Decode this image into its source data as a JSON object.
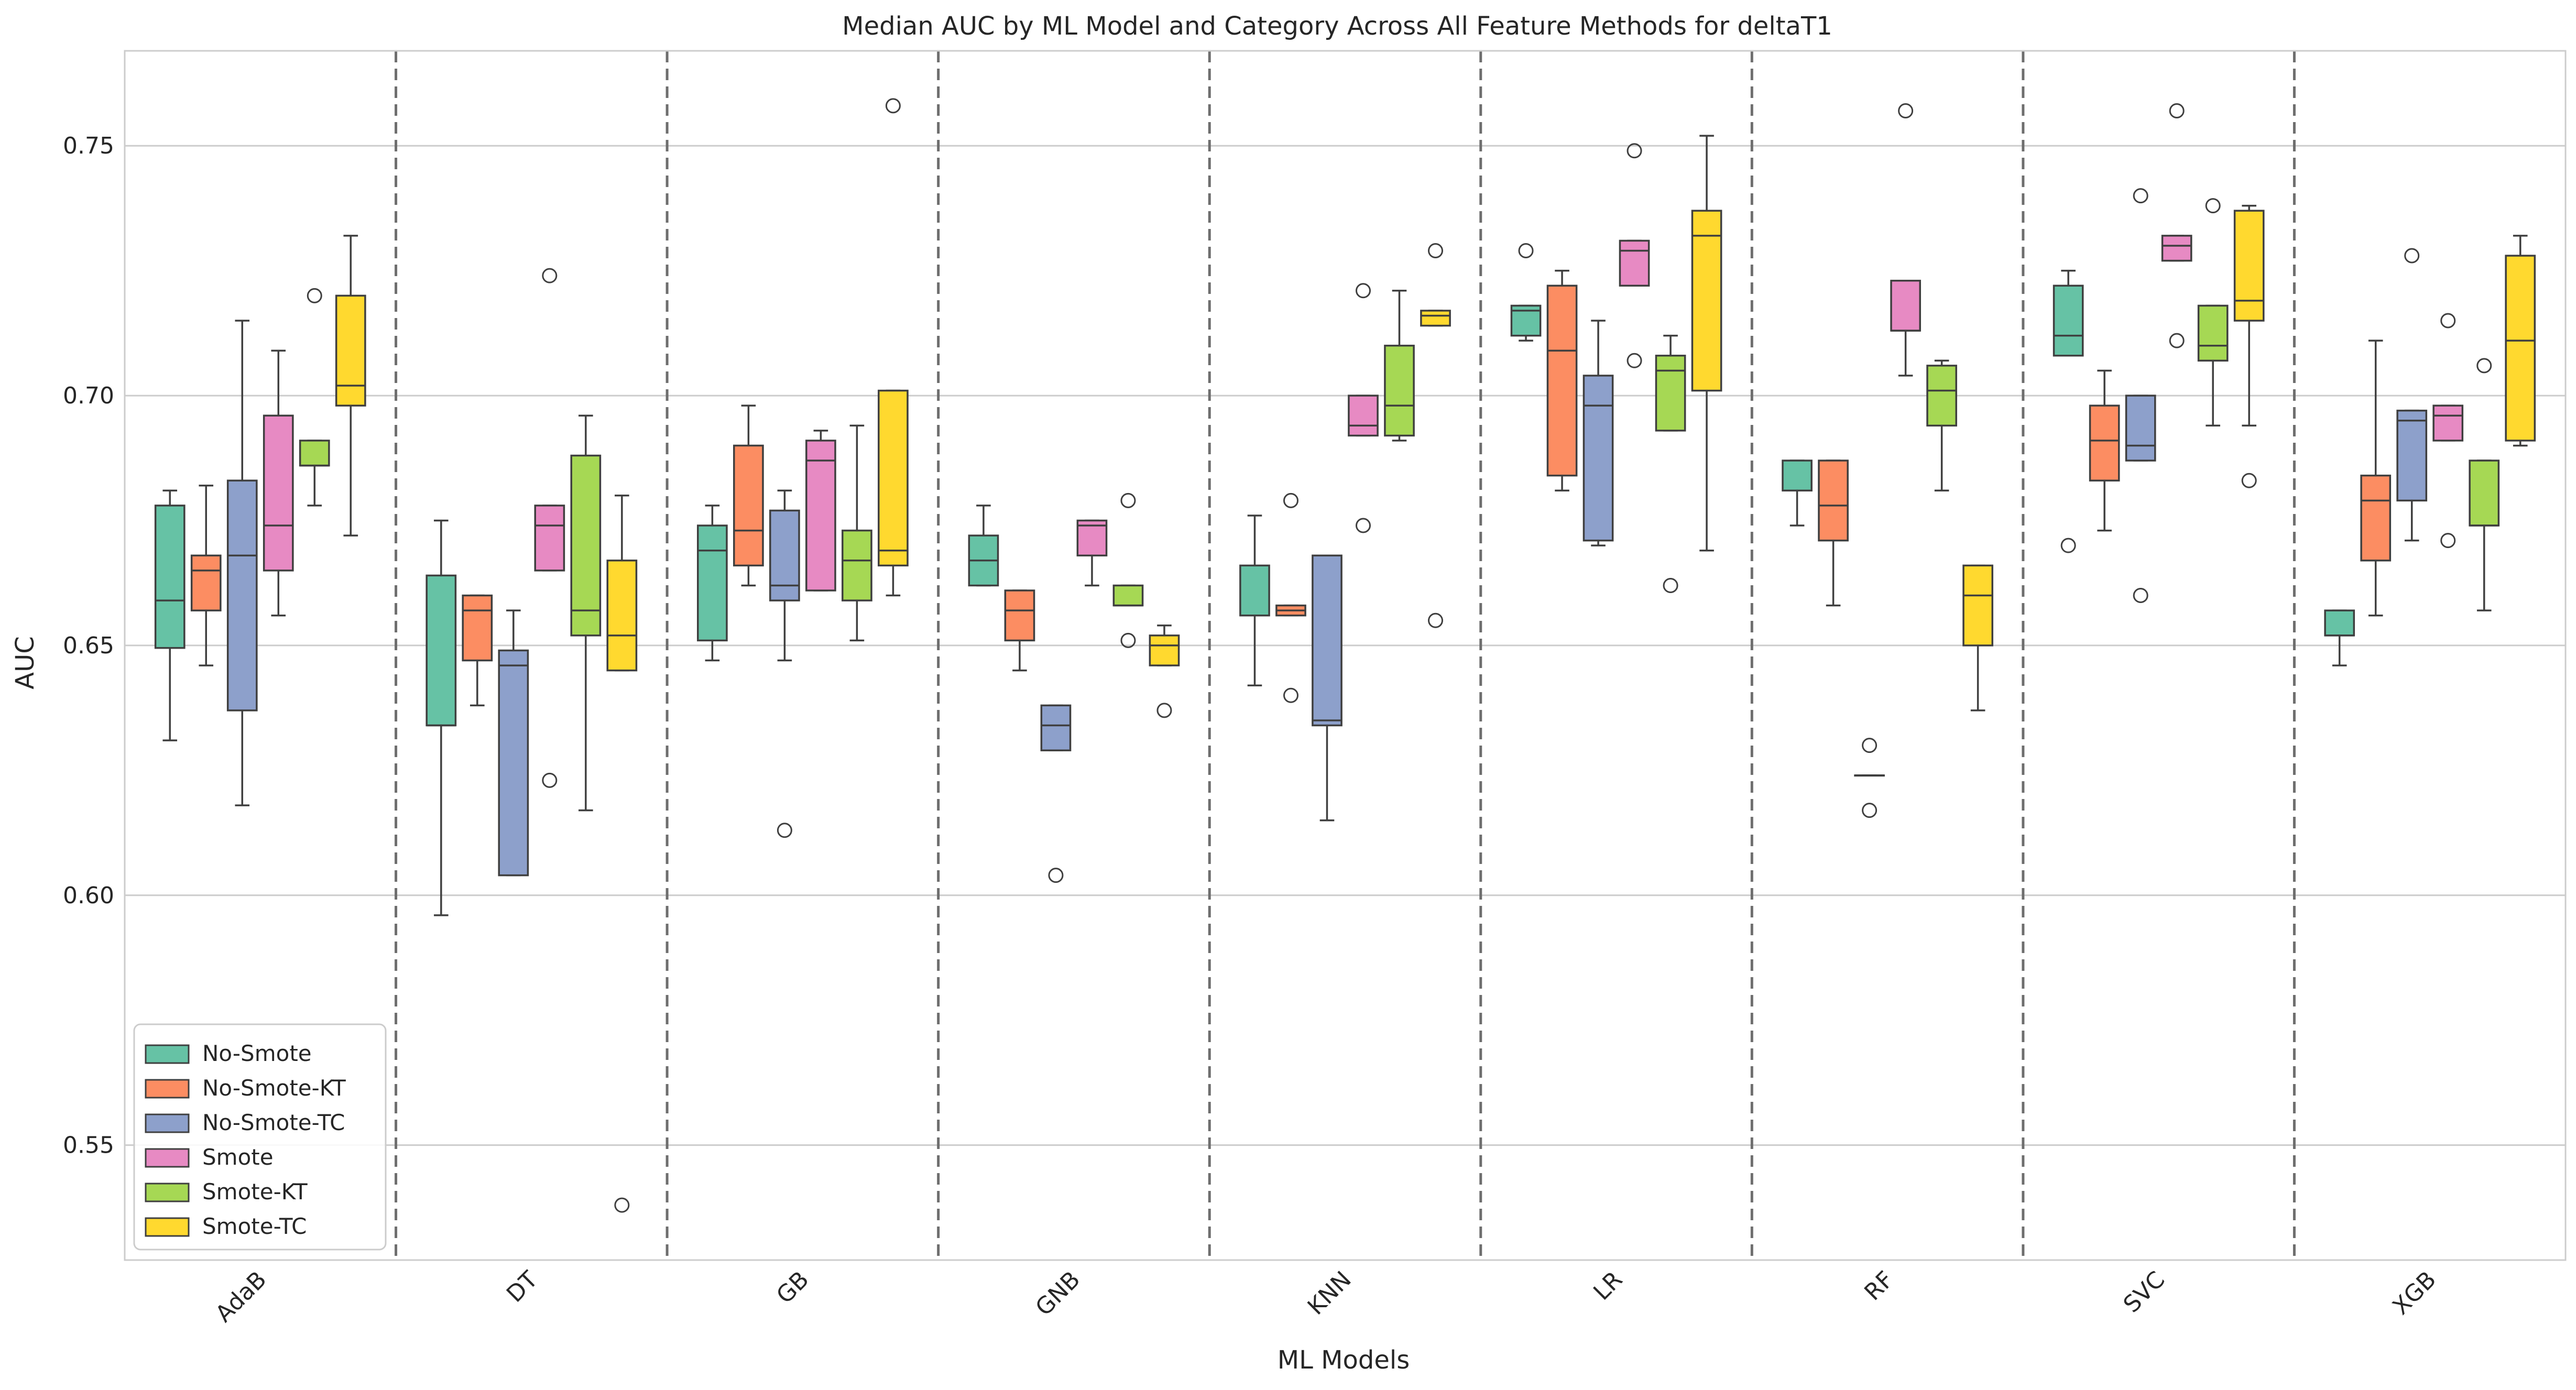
{
  "chart_data": {
    "type": "box",
    "title": "Median AUC by ML Model and Category Across All Feature Methods for deltaT1",
    "xlabel": "ML Models",
    "ylabel": "AUC",
    "ylim": [
      0.527,
      0.769
    ],
    "yticks": [
      0.55,
      0.6,
      0.65,
      0.7,
      0.75
    ],
    "ytick_labels": [
      "0.55",
      "0.60",
      "0.65",
      "0.70",
      "0.75"
    ],
    "grid": true,
    "legend_position": "lower-left",
    "categories": [
      "AdaB",
      "DT",
      "GB",
      "GNB",
      "KNN",
      "LR",
      "RF",
      "SVC",
      "XGB"
    ],
    "series": [
      {
        "name": "No-Smote",
        "color": "#66c2a5",
        "boxes": [
          {
            "q1": 0.6495,
            "median": 0.659,
            "q3": 0.678,
            "whisker_low": 0.631,
            "whisker_high": 0.681,
            "outliers": []
          },
          {
            "q1": 0.634,
            "median": 0.634,
            "q3": 0.664,
            "whisker_low": 0.596,
            "whisker_high": 0.675,
            "outliers": []
          },
          {
            "q1": 0.651,
            "median": 0.669,
            "q3": 0.674,
            "whisker_low": 0.647,
            "whisker_high": 0.678,
            "outliers": []
          },
          {
            "q1": 0.662,
            "median": 0.667,
            "q3": 0.672,
            "whisker_low": 0.662,
            "whisker_high": 0.678,
            "outliers": []
          },
          {
            "q1": 0.656,
            "median": 0.656,
            "q3": 0.666,
            "whisker_low": 0.642,
            "whisker_high": 0.676,
            "outliers": []
          },
          {
            "q1": 0.712,
            "median": 0.717,
            "q3": 0.718,
            "whisker_low": 0.711,
            "whisker_high": 0.718,
            "outliers": [
              0.729
            ]
          },
          {
            "q1": 0.681,
            "median": 0.681,
            "q3": 0.687,
            "whisker_low": 0.674,
            "whisker_high": 0.687,
            "outliers": []
          },
          {
            "q1": 0.708,
            "median": 0.712,
            "q3": 0.722,
            "whisker_low": 0.708,
            "whisker_high": 0.725,
            "outliers": [
              0.67
            ]
          },
          {
            "q1": 0.652,
            "median": 0.652,
            "q3": 0.657,
            "whisker_low": 0.646,
            "whisker_high": 0.657,
            "outliers": []
          }
        ]
      },
      {
        "name": "No-Smote-KT",
        "color": "#fc8d62",
        "boxes": [
          {
            "q1": 0.657,
            "median": 0.665,
            "q3": 0.668,
            "whisker_low": 0.646,
            "whisker_high": 0.682,
            "outliers": []
          },
          {
            "q1": 0.647,
            "median": 0.657,
            "q3": 0.66,
            "whisker_low": 0.638,
            "whisker_high": 0.66,
            "outliers": []
          },
          {
            "q1": 0.666,
            "median": 0.673,
            "q3": 0.69,
            "whisker_low": 0.662,
            "whisker_high": 0.698,
            "outliers": []
          },
          {
            "q1": 0.651,
            "median": 0.657,
            "q3": 0.661,
            "whisker_low": 0.645,
            "whisker_high": 0.661,
            "outliers": []
          },
          {
            "q1": 0.656,
            "median": 0.657,
            "q3": 0.658,
            "whisker_low": 0.656,
            "whisker_high": 0.658,
            "outliers": [
              0.679,
              0.64
            ]
          },
          {
            "q1": 0.684,
            "median": 0.709,
            "q3": 0.722,
            "whisker_low": 0.681,
            "whisker_high": 0.725,
            "outliers": []
          },
          {
            "q1": 0.671,
            "median": 0.678,
            "q3": 0.687,
            "whisker_low": 0.658,
            "whisker_high": 0.687,
            "outliers": []
          },
          {
            "q1": 0.683,
            "median": 0.691,
            "q3": 0.698,
            "whisker_low": 0.673,
            "whisker_high": 0.705,
            "outliers": []
          },
          {
            "q1": 0.667,
            "median": 0.679,
            "q3": 0.684,
            "whisker_low": 0.656,
            "whisker_high": 0.711,
            "outliers": []
          }
        ]
      },
      {
        "name": "No-Smote-TC",
        "color": "#8da0cb",
        "boxes": [
          {
            "q1": 0.637,
            "median": 0.668,
            "q3": 0.683,
            "whisker_low": 0.618,
            "whisker_high": 0.715,
            "outliers": []
          },
          {
            "q1": 0.604,
            "median": 0.646,
            "q3": 0.649,
            "whisker_low": 0.604,
            "whisker_high": 0.657,
            "outliers": []
          },
          {
            "q1": 0.659,
            "median": 0.662,
            "q3": 0.677,
            "whisker_low": 0.647,
            "whisker_high": 0.681,
            "outliers": [
              0.613
            ]
          },
          {
            "q1": 0.629,
            "median": 0.634,
            "q3": 0.638,
            "whisker_low": 0.629,
            "whisker_high": 0.638,
            "outliers": [
              0.604
            ]
          },
          {
            "q1": 0.634,
            "median": 0.635,
            "q3": 0.668,
            "whisker_low": 0.615,
            "whisker_high": 0.668,
            "outliers": []
          },
          {
            "q1": 0.671,
            "median": 0.698,
            "q3": 0.704,
            "whisker_low": 0.67,
            "whisker_high": 0.715,
            "outliers": []
          },
          {
            "q1": 0.624,
            "median": 0.624,
            "q3": 0.624,
            "whisker_low": 0.624,
            "whisker_high": 0.624,
            "outliers": [
              0.63,
              0.617
            ]
          },
          {
            "q1": 0.687,
            "median": 0.69,
            "q3": 0.7,
            "whisker_low": 0.687,
            "whisker_high": 0.7,
            "outliers": [
              0.74,
              0.66
            ]
          },
          {
            "q1": 0.679,
            "median": 0.695,
            "q3": 0.697,
            "whisker_low": 0.671,
            "whisker_high": 0.697,
            "outliers": [
              0.728
            ]
          }
        ]
      },
      {
        "name": "Smote",
        "color": "#e78ac3",
        "boxes": [
          {
            "q1": 0.665,
            "median": 0.674,
            "q3": 0.696,
            "whisker_low": 0.656,
            "whisker_high": 0.709,
            "outliers": []
          },
          {
            "q1": 0.665,
            "median": 0.674,
            "q3": 0.678,
            "whisker_low": 0.665,
            "whisker_high": 0.678,
            "outliers": [
              0.724,
              0.623
            ]
          },
          {
            "q1": 0.661,
            "median": 0.687,
            "q3": 0.691,
            "whisker_low": 0.661,
            "whisker_high": 0.693,
            "outliers": []
          },
          {
            "q1": 0.668,
            "median": 0.674,
            "q3": 0.675,
            "whisker_low": 0.662,
            "whisker_high": 0.675,
            "outliers": []
          },
          {
            "q1": 0.692,
            "median": 0.694,
            "q3": 0.7,
            "whisker_low": 0.692,
            "whisker_high": 0.7,
            "outliers": [
              0.721,
              0.674
            ]
          },
          {
            "q1": 0.722,
            "median": 0.729,
            "q3": 0.731,
            "whisker_low": 0.722,
            "whisker_high": 0.731,
            "outliers": [
              0.749,
              0.707
            ]
          },
          {
            "q1": 0.713,
            "median": 0.713,
            "q3": 0.723,
            "whisker_low": 0.704,
            "whisker_high": 0.723,
            "outliers": [
              0.757
            ]
          },
          {
            "q1": 0.727,
            "median": 0.73,
            "q3": 0.732,
            "whisker_low": 0.727,
            "whisker_high": 0.732,
            "outliers": [
              0.757,
              0.711
            ]
          },
          {
            "q1": 0.691,
            "median": 0.696,
            "q3": 0.698,
            "whisker_low": 0.691,
            "whisker_high": 0.698,
            "outliers": [
              0.715,
              0.671
            ]
          }
        ]
      },
      {
        "name": "Smote-KT",
        "color": "#a6d854",
        "boxes": [
          {
            "q1": 0.686,
            "median": 0.686,
            "q3": 0.691,
            "whisker_low": 0.678,
            "whisker_high": 0.691,
            "outliers": [
              0.72
            ]
          },
          {
            "q1": 0.652,
            "median": 0.657,
            "q3": 0.688,
            "whisker_low": 0.617,
            "whisker_high": 0.696,
            "outliers": []
          },
          {
            "q1": 0.659,
            "median": 0.667,
            "q3": 0.673,
            "whisker_low": 0.651,
            "whisker_high": 0.694,
            "outliers": []
          },
          {
            "q1": 0.658,
            "median": 0.658,
            "q3": 0.662,
            "whisker_low": 0.658,
            "whisker_high": 0.662,
            "outliers": [
              0.679,
              0.651
            ]
          },
          {
            "q1": 0.692,
            "median": 0.698,
            "q3": 0.71,
            "whisker_low": 0.691,
            "whisker_high": 0.721,
            "outliers": []
          },
          {
            "q1": 0.693,
            "median": 0.705,
            "q3": 0.708,
            "whisker_low": 0.693,
            "whisker_high": 0.712,
            "outliers": [
              0.662
            ]
          },
          {
            "q1": 0.694,
            "median": 0.701,
            "q3": 0.706,
            "whisker_low": 0.681,
            "whisker_high": 0.707,
            "outliers": []
          },
          {
            "q1": 0.707,
            "median": 0.71,
            "q3": 0.718,
            "whisker_low": 0.694,
            "whisker_high": 0.718,
            "outliers": [
              0.738
            ]
          },
          {
            "q1": 0.674,
            "median": 0.674,
            "q3": 0.687,
            "whisker_low": 0.657,
            "whisker_high": 0.687,
            "outliers": [
              0.706
            ]
          }
        ]
      },
      {
        "name": "Smote-TC",
        "color": "#ffd92f",
        "boxes": [
          {
            "q1": 0.698,
            "median": 0.702,
            "q3": 0.72,
            "whisker_low": 0.672,
            "whisker_high": 0.732,
            "outliers": []
          },
          {
            "q1": 0.645,
            "median": 0.652,
            "q3": 0.667,
            "whisker_low": 0.645,
            "whisker_high": 0.68,
            "outliers": [
              0.538
            ]
          },
          {
            "q1": 0.666,
            "median": 0.669,
            "q3": 0.701,
            "whisker_low": 0.66,
            "whisker_high": 0.701,
            "outliers": [
              0.758
            ]
          },
          {
            "q1": 0.646,
            "median": 0.65,
            "q3": 0.652,
            "whisker_low": 0.646,
            "whisker_high": 0.654,
            "outliers": [
              0.637
            ]
          },
          {
            "q1": 0.714,
            "median": 0.716,
            "q3": 0.717,
            "whisker_low": 0.714,
            "whisker_high": 0.717,
            "outliers": [
              0.729,
              0.655
            ]
          },
          {
            "q1": 0.701,
            "median": 0.732,
            "q3": 0.737,
            "whisker_low": 0.669,
            "whisker_high": 0.752,
            "outliers": []
          },
          {
            "q1": 0.65,
            "median": 0.66,
            "q3": 0.666,
            "whisker_low": 0.637,
            "whisker_high": 0.666,
            "outliers": []
          },
          {
            "q1": 0.715,
            "median": 0.719,
            "q3": 0.737,
            "whisker_low": 0.694,
            "whisker_high": 0.738,
            "outliers": [
              0.683
            ]
          },
          {
            "q1": 0.691,
            "median": 0.711,
            "q3": 0.728,
            "whisker_low": 0.69,
            "whisker_high": 0.732,
            "outliers": []
          }
        ]
      }
    ]
  }
}
